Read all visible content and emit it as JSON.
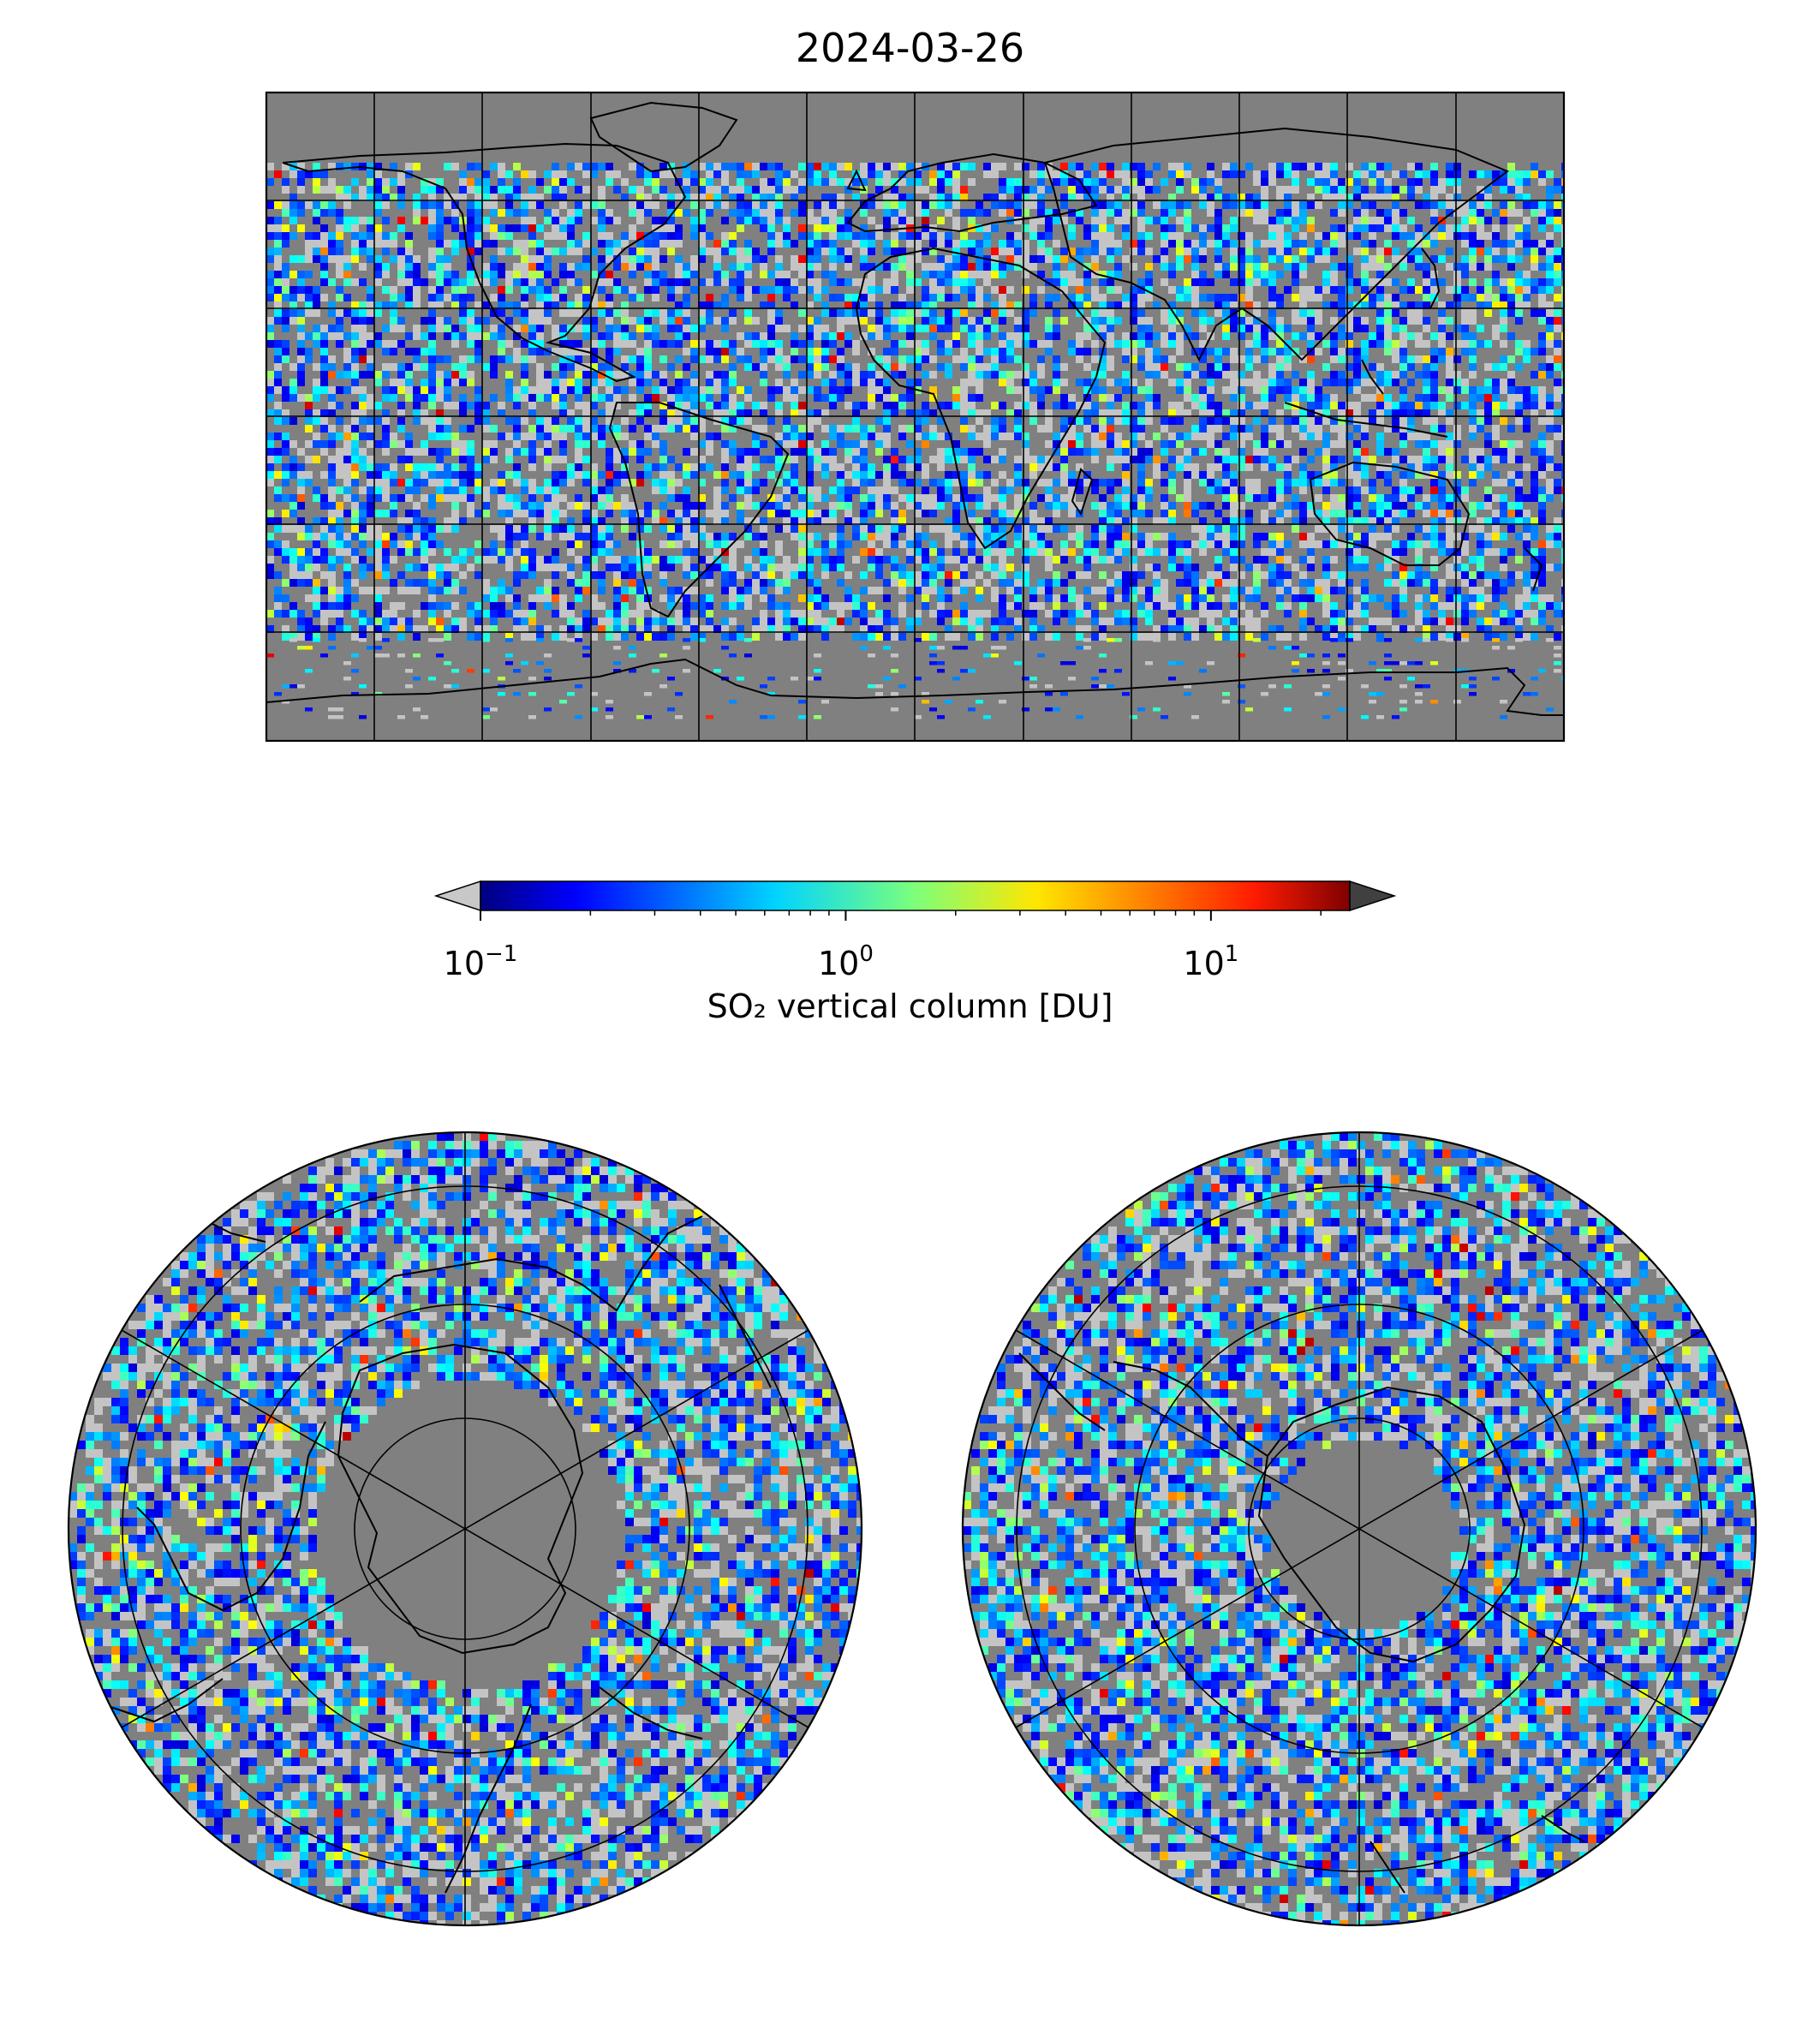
{
  "title": "2024-03-26",
  "colorbar": {
    "label": "SO₂ vertical column [DU]",
    "scale": "log",
    "range": [
      0.1,
      24
    ],
    "extend": "both",
    "colormap": "jet",
    "under_color": "#c8c8c8",
    "over_color": "#404040",
    "ticks": [
      {
        "base": "10",
        "exp": "−1",
        "value": 0.1
      },
      {
        "base": "10",
        "exp": "0",
        "value": 1
      },
      {
        "base": "10",
        "exp": "1",
        "value": 10
      }
    ]
  },
  "chart_data": [
    {
      "type": "heatmap",
      "projection": "equirectangular",
      "extent": {
        "lon": [
          -180,
          180
        ],
        "lat": [
          -90,
          90
        ]
      },
      "gridlines": {
        "lon_step": 30,
        "lat_step": 30
      },
      "background": "#808080",
      "value_scale": "log",
      "missing_color": "#808080"
    },
    {
      "type": "heatmap",
      "projection": "north polar stereographic",
      "background": "#808080",
      "value_scale": "log"
    },
    {
      "type": "heatmap",
      "projection": "south polar stereographic",
      "background": "#808080",
      "value_scale": "log"
    }
  ]
}
